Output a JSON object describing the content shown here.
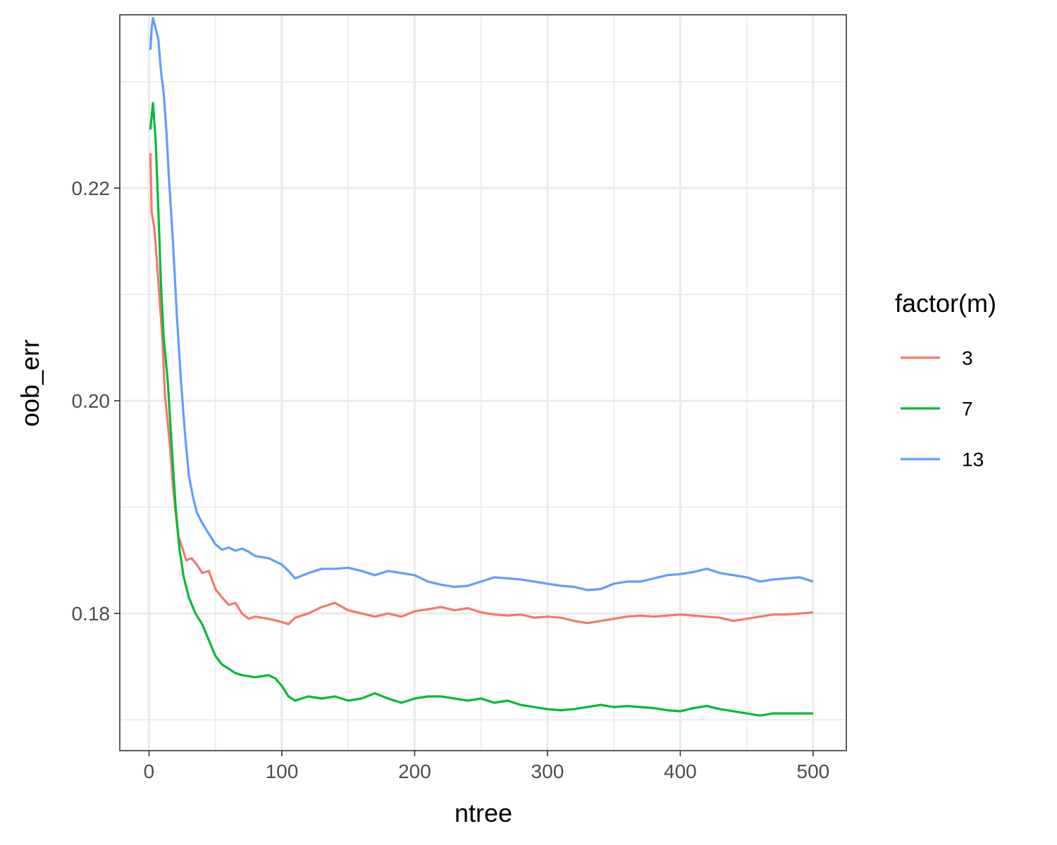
{
  "chart_data": {
    "type": "line",
    "title": "",
    "xlabel": "ntree",
    "ylabel": "oob_err",
    "xlim": [
      -22,
      525
    ],
    "ylim": [
      0.1671,
      0.2363
    ],
    "x_ticks": [
      0,
      100,
      200,
      300,
      400,
      500
    ],
    "x_tick_labels": [
      "0",
      "100",
      "200",
      "300",
      "400",
      "500"
    ],
    "y_ticks": [
      0.18,
      0.2,
      0.22
    ],
    "y_tick_labels": [
      "0.18",
      "0.20",
      "0.22"
    ],
    "y_minor_ticks": [
      0.17,
      0.19,
      0.21,
      0.23
    ],
    "x_minor_ticks": [
      50,
      150,
      250,
      350,
      450
    ],
    "grid": true,
    "legend": {
      "title": "factor(m)",
      "placement": "right"
    },
    "series": [
      {
        "name": "3",
        "color": "#F8766D",
        "points": [
          [
            1,
            0.2233
          ],
          [
            2,
            0.2177
          ],
          [
            4,
            0.2163
          ],
          [
            6,
            0.213
          ],
          [
            8,
            0.2095
          ],
          [
            10,
            0.206
          ],
          [
            12,
            0.2005
          ],
          [
            14,
            0.198
          ],
          [
            16,
            0.1955
          ],
          [
            18,
            0.192
          ],
          [
            20,
            0.1895
          ],
          [
            22,
            0.1873
          ],
          [
            25,
            0.1862
          ],
          [
            28,
            0.185
          ],
          [
            32,
            0.1852
          ],
          [
            36,
            0.1846
          ],
          [
            40,
            0.1838
          ],
          [
            45,
            0.184
          ],
          [
            50,
            0.1823
          ],
          [
            55,
            0.1815
          ],
          [
            60,
            0.1808
          ],
          [
            65,
            0.181
          ],
          [
            70,
            0.18
          ],
          [
            75,
            0.1795
          ],
          [
            80,
            0.1797
          ],
          [
            90,
            0.1795
          ],
          [
            100,
            0.1792
          ],
          [
            105,
            0.179
          ],
          [
            110,
            0.1796
          ],
          [
            120,
            0.18
          ],
          [
            130,
            0.1806
          ],
          [
            140,
            0.181
          ],
          [
            150,
            0.1803
          ],
          [
            160,
            0.18
          ],
          [
            170,
            0.1797
          ],
          [
            180,
            0.18
          ],
          [
            190,
            0.1797
          ],
          [
            200,
            0.1802
          ],
          [
            210,
            0.1804
          ],
          [
            220,
            0.1806
          ],
          [
            230,
            0.1803
          ],
          [
            240,
            0.1805
          ],
          [
            250,
            0.1801
          ],
          [
            260,
            0.1799
          ],
          [
            270,
            0.1798
          ],
          [
            280,
            0.1799
          ],
          [
            290,
            0.1796
          ],
          [
            300,
            0.1797
          ],
          [
            310,
            0.1796
          ],
          [
            320,
            0.1793
          ],
          [
            330,
            0.1791
          ],
          [
            340,
            0.1793
          ],
          [
            350,
            0.1795
          ],
          [
            360,
            0.1797
          ],
          [
            370,
            0.1798
          ],
          [
            380,
            0.1797
          ],
          [
            390,
            0.1798
          ],
          [
            400,
            0.1799
          ],
          [
            410,
            0.1798
          ],
          [
            420,
            0.1797
          ],
          [
            430,
            0.1796
          ],
          [
            440,
            0.1793
          ],
          [
            450,
            0.1795
          ],
          [
            460,
            0.1797
          ],
          [
            470,
            0.1799
          ],
          [
            480,
            0.1799
          ],
          [
            490,
            0.18
          ],
          [
            500,
            0.1801
          ]
        ]
      },
      {
        "name": "7",
        "color": "#00BA38",
        "points": [
          [
            1,
            0.2255
          ],
          [
            3,
            0.228
          ],
          [
            5,
            0.2245
          ],
          [
            7,
            0.218
          ],
          [
            9,
            0.211
          ],
          [
            11,
            0.206
          ],
          [
            14,
            0.202
          ],
          [
            17,
            0.196
          ],
          [
            20,
            0.19
          ],
          [
            23,
            0.186
          ],
          [
            26,
            0.1835
          ],
          [
            30,
            0.1815
          ],
          [
            35,
            0.18
          ],
          [
            40,
            0.179
          ],
          [
            45,
            0.1775
          ],
          [
            50,
            0.176
          ],
          [
            55,
            0.1752
          ],
          [
            60,
            0.1748
          ],
          [
            65,
            0.1744
          ],
          [
            70,
            0.1742
          ],
          [
            80,
            0.174
          ],
          [
            90,
            0.1742
          ],
          [
            95,
            0.1739
          ],
          [
            100,
            0.1732
          ],
          [
            105,
            0.1722
          ],
          [
            110,
            0.1718
          ],
          [
            120,
            0.1722
          ],
          [
            130,
            0.172
          ],
          [
            140,
            0.1722
          ],
          [
            150,
            0.1718
          ],
          [
            160,
            0.172
          ],
          [
            170,
            0.1725
          ],
          [
            180,
            0.172
          ],
          [
            190,
            0.1716
          ],
          [
            200,
            0.172
          ],
          [
            210,
            0.1722
          ],
          [
            220,
            0.1722
          ],
          [
            230,
            0.172
          ],
          [
            240,
            0.1718
          ],
          [
            250,
            0.172
          ],
          [
            260,
            0.1716
          ],
          [
            270,
            0.1718
          ],
          [
            280,
            0.1714
          ],
          [
            290,
            0.1712
          ],
          [
            300,
            0.171
          ],
          [
            310,
            0.1709
          ],
          [
            320,
            0.171
          ],
          [
            330,
            0.1712
          ],
          [
            340,
            0.1714
          ],
          [
            350,
            0.1712
          ],
          [
            360,
            0.1713
          ],
          [
            370,
            0.1712
          ],
          [
            380,
            0.1711
          ],
          [
            390,
            0.1709
          ],
          [
            400,
            0.1708
          ],
          [
            410,
            0.1711
          ],
          [
            420,
            0.1713
          ],
          [
            430,
            0.171
          ],
          [
            440,
            0.1708
          ],
          [
            450,
            0.1706
          ],
          [
            460,
            0.1704
          ],
          [
            470,
            0.1706
          ],
          [
            480,
            0.1706
          ],
          [
            490,
            0.1706
          ],
          [
            500,
            0.1706
          ]
        ]
      },
      {
        "name": "13",
        "color": "#619CFF",
        "points": [
          [
            1,
            0.233
          ],
          [
            2,
            0.235
          ],
          [
            3,
            0.236
          ],
          [
            5,
            0.235
          ],
          [
            7,
            0.234
          ],
          [
            9,
            0.231
          ],
          [
            11,
            0.229
          ],
          [
            13,
            0.2255
          ],
          [
            15,
            0.221
          ],
          [
            18,
            0.215
          ],
          [
            21,
            0.208
          ],
          [
            24,
            0.202
          ],
          [
            27,
            0.197
          ],
          [
            30,
            0.193
          ],
          [
            33,
            0.191
          ],
          [
            36,
            0.1895
          ],
          [
            40,
            0.1885
          ],
          [
            45,
            0.1875
          ],
          [
            50,
            0.1865
          ],
          [
            55,
            0.186
          ],
          [
            60,
            0.1862
          ],
          [
            65,
            0.1859
          ],
          [
            70,
            0.1861
          ],
          [
            75,
            0.1858
          ],
          [
            80,
            0.1854
          ],
          [
            90,
            0.1852
          ],
          [
            100,
            0.1846
          ],
          [
            105,
            0.184
          ],
          [
            110,
            0.1833
          ],
          [
            120,
            0.1838
          ],
          [
            130,
            0.1842
          ],
          [
            140,
            0.1842
          ],
          [
            150,
            0.1843
          ],
          [
            160,
            0.184
          ],
          [
            170,
            0.1836
          ],
          [
            180,
            0.184
          ],
          [
            190,
            0.1838
          ],
          [
            200,
            0.1836
          ],
          [
            210,
            0.183
          ],
          [
            220,
            0.1827
          ],
          [
            230,
            0.1825
          ],
          [
            240,
            0.1826
          ],
          [
            250,
            0.183
          ],
          [
            260,
            0.1834
          ],
          [
            270,
            0.1833
          ],
          [
            280,
            0.1832
          ],
          [
            290,
            0.183
          ],
          [
            300,
            0.1828
          ],
          [
            310,
            0.1826
          ],
          [
            320,
            0.1825
          ],
          [
            330,
            0.1822
          ],
          [
            340,
            0.1823
          ],
          [
            350,
            0.1828
          ],
          [
            360,
            0.183
          ],
          [
            370,
            0.183
          ],
          [
            380,
            0.1833
          ],
          [
            390,
            0.1836
          ],
          [
            400,
            0.1837
          ],
          [
            410,
            0.1839
          ],
          [
            420,
            0.1842
          ],
          [
            430,
            0.1838
          ],
          [
            440,
            0.1836
          ],
          [
            450,
            0.1834
          ],
          [
            460,
            0.183
          ],
          [
            470,
            0.1832
          ],
          [
            480,
            0.1833
          ],
          [
            490,
            0.1834
          ],
          [
            500,
            0.183
          ]
        ]
      }
    ]
  }
}
